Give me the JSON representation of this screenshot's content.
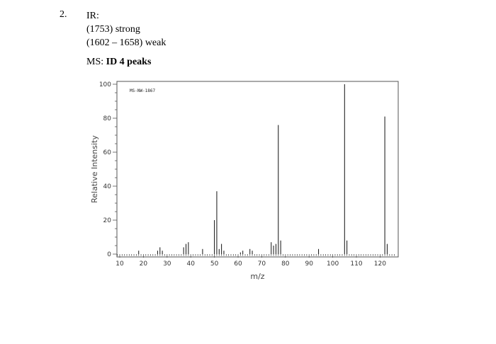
{
  "question": {
    "number": "2.",
    "ir_heading": "IR:",
    "ir_lines": [
      "(1753) strong",
      "(1602 – 1658) weak"
    ],
    "ms_prefix": "MS: ",
    "ms_bold": "ID 4 peaks"
  },
  "chart_data": {
    "type": "bar",
    "title": "MS-NW-1867",
    "xlabel": "m/z",
    "ylabel": "Relative Intensity",
    "xlim": [
      8,
      127
    ],
    "ylim": [
      0,
      100
    ],
    "xticks": [
      10,
      20,
      30,
      40,
      50,
      60,
      70,
      80,
      90,
      100,
      110,
      120
    ],
    "yticks": [
      0,
      20,
      40,
      60,
      80,
      100
    ],
    "grid": false,
    "peaks": [
      {
        "x": 18,
        "y": 2
      },
      {
        "x": 26,
        "y": 2
      },
      {
        "x": 27,
        "y": 4
      },
      {
        "x": 28,
        "y": 2
      },
      {
        "x": 37,
        "y": 4
      },
      {
        "x": 38,
        "y": 6
      },
      {
        "x": 39,
        "y": 7
      },
      {
        "x": 45,
        "y": 3
      },
      {
        "x": 50,
        "y": 20
      },
      {
        "x": 51,
        "y": 37
      },
      {
        "x": 52,
        "y": 3
      },
      {
        "x": 53,
        "y": 6
      },
      {
        "x": 54,
        "y": 2
      },
      {
        "x": 61,
        "y": 1
      },
      {
        "x": 62,
        "y": 2
      },
      {
        "x": 65,
        "y": 3
      },
      {
        "x": 66,
        "y": 2
      },
      {
        "x": 74,
        "y": 7
      },
      {
        "x": 75,
        "y": 5
      },
      {
        "x": 76,
        "y": 6
      },
      {
        "x": 77,
        "y": 76
      },
      {
        "x": 78,
        "y": 8
      },
      {
        "x": 94,
        "y": 3
      },
      {
        "x": 105,
        "y": 100
      },
      {
        "x": 106,
        "y": 8
      },
      {
        "x": 122,
        "y": 81
      },
      {
        "x": 123,
        "y": 6
      }
    ]
  }
}
